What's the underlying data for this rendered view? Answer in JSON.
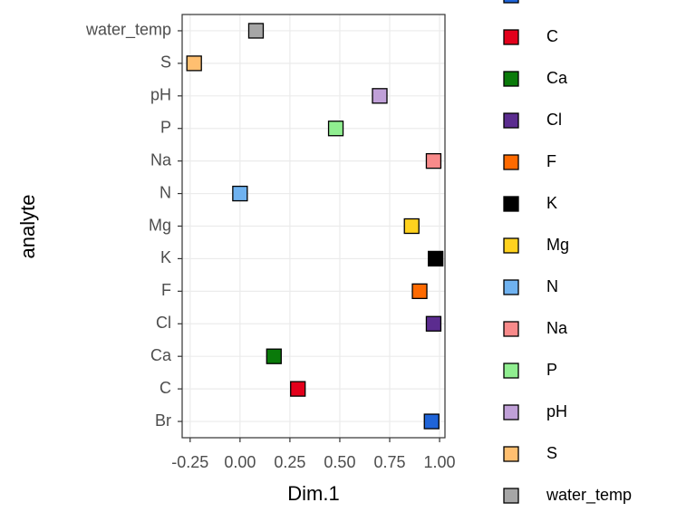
{
  "chart_data": {
    "type": "scatter",
    "x_label": "Dim.1",
    "y_label": "analyte",
    "categories": [
      "Br",
      "C",
      "Ca",
      "Cl",
      "F",
      "K",
      "Mg",
      "N",
      "Na",
      "P",
      "pH",
      "S",
      "water_temp"
    ],
    "values": [
      0.96,
      0.29,
      0.17,
      0.97,
      0.9,
      0.98,
      0.86,
      0.0,
      0.97,
      0.48,
      0.7,
      -0.23,
      0.08
    ],
    "colors": [
      "#1f64d8",
      "#e3001b",
      "#0a7a0a",
      "#5b2c8f",
      "#ff6a00",
      "#000000",
      "#ffd21f",
      "#6fb2f0",
      "#f88a8a",
      "#90ee90",
      "#c0a0d8",
      "#ffbf70",
      "#a6a6a6"
    ],
    "xlim": [
      -0.29,
      1.027
    ],
    "xticks": [
      -0.25,
      {
        "value": 0,
        "label": "0.00"
      },
      0.25,
      {
        "value": 0.5,
        "label": "0.50"
      },
      0.75,
      {
        "value": 1,
        "label": "1.00"
      }
    ],
    "grid": true
  }
}
